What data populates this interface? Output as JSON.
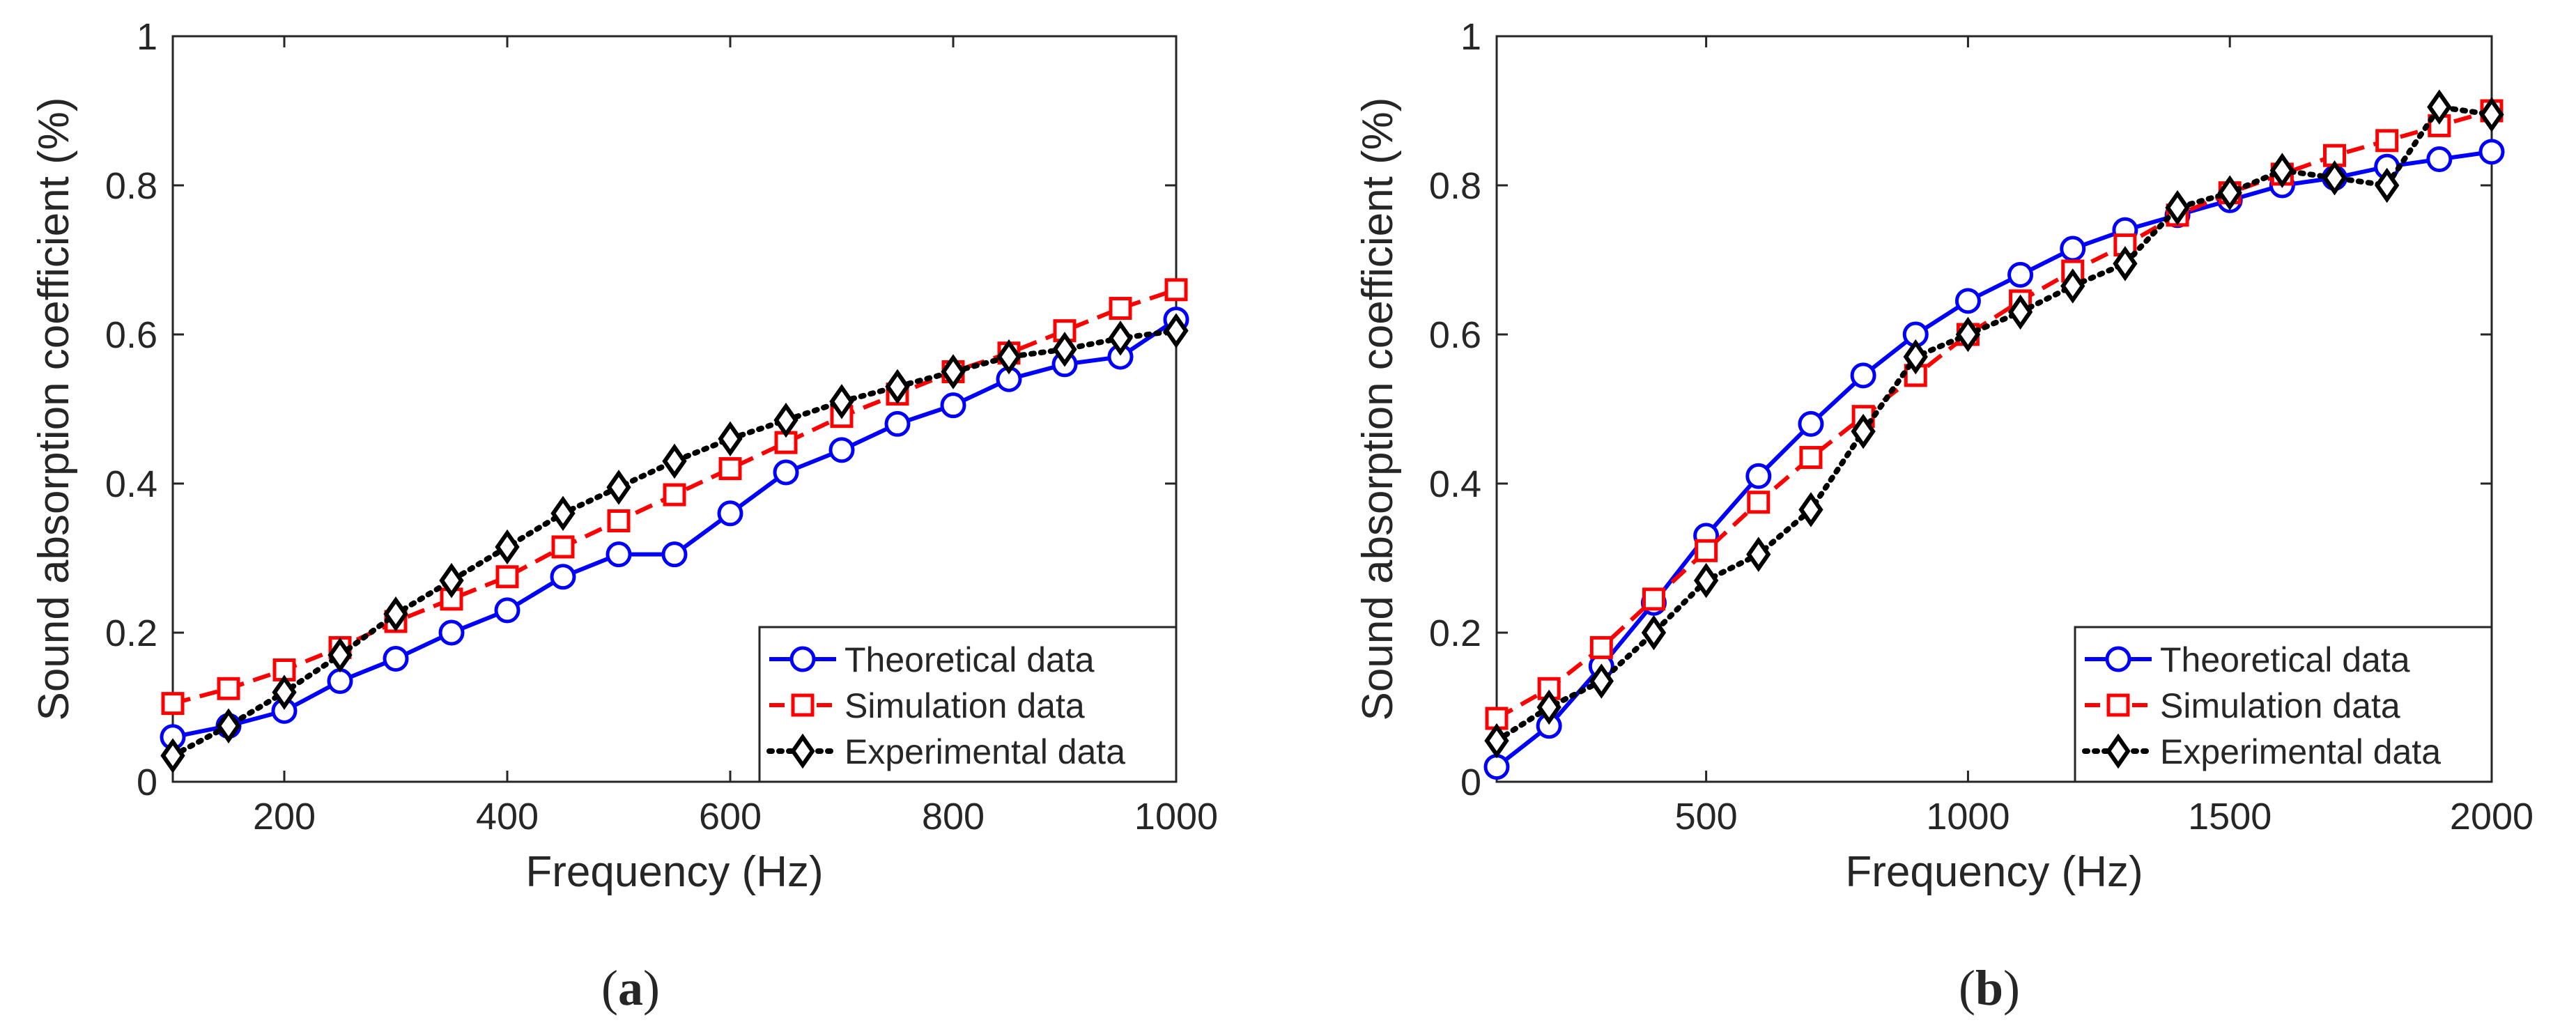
{
  "figure": {
    "panels": [
      {
        "open": "(",
        "letter": "a",
        "close": ")"
      },
      {
        "open": "(",
        "letter": "b",
        "close": ")"
      }
    ]
  },
  "series_style": {
    "Theoretical data": {
      "color": "#0000ff",
      "dash": "solid",
      "marker": "circle"
    },
    "Simulation data": {
      "color": "#ff0000",
      "dash": "dashed",
      "marker": "square"
    },
    "Experimental data": {
      "color": "#000000",
      "dash": "dotted",
      "marker": "diamond"
    }
  },
  "chart_data": [
    {
      "type": "line",
      "title": "",
      "xlabel": "Frequency (Hz)",
      "ylabel": "Sound absorption coefficient (%)",
      "xlim": [
        100,
        1000
      ],
      "ylim": [
        0,
        1
      ],
      "xticks": [
        200,
        400,
        600,
        800,
        1000
      ],
      "yticks": [
        0,
        0.2,
        0.4,
        0.6,
        0.8,
        1
      ],
      "xtick_labels": [
        "200",
        "400",
        "600",
        "800",
        "1000"
      ],
      "ytick_labels": [
        "0",
        "0.2",
        "0.4",
        "0.6",
        "0.8",
        "1"
      ],
      "legend": "bottom-right",
      "x": [
        100,
        150,
        200,
        250,
        300,
        350,
        400,
        450,
        500,
        550,
        600,
        650,
        700,
        750,
        800,
        850,
        900,
        950,
        1000
      ],
      "series": [
        {
          "name": "Theoretical data",
          "values": [
            0.06,
            0.075,
            0.095,
            0.135,
            0.165,
            0.2,
            0.23,
            0.275,
            0.305,
            0.305,
            0.36,
            0.415,
            0.445,
            0.48,
            0.505,
            0.54,
            0.56,
            0.57,
            0.62
          ]
        },
        {
          "name": "Simulation data",
          "values": [
            0.105,
            0.125,
            0.15,
            0.18,
            0.215,
            0.245,
            0.275,
            0.315,
            0.35,
            0.385,
            0.42,
            0.455,
            0.49,
            0.52,
            0.55,
            0.575,
            0.605,
            0.635,
            0.66
          ]
        },
        {
          "name": "Experimental data",
          "values": [
            0.035,
            0.075,
            0.12,
            0.17,
            0.225,
            0.27,
            0.315,
            0.36,
            0.395,
            0.43,
            0.46,
            0.485,
            0.51,
            0.53,
            0.55,
            0.57,
            0.58,
            0.595,
            0.605
          ]
        }
      ]
    },
    {
      "type": "line",
      "title": "",
      "xlabel": "Frequency (Hz)",
      "ylabel": "Sound absorption coefficient (%)",
      "xlim": [
        100,
        2000
      ],
      "ylim": [
        0,
        1
      ],
      "xticks": [
        500,
        1000,
        1500,
        2000
      ],
      "yticks": [
        0,
        0.2,
        0.4,
        0.6,
        0.8,
        1
      ],
      "xtick_labels": [
        "500",
        "1000",
        "1500",
        "2000"
      ],
      "ytick_labels": [
        "0",
        "0.2",
        "0.4",
        "0.6",
        "0.8",
        "1"
      ],
      "legend": "bottom-right",
      "x": [
        100,
        200,
        300,
        400,
        500,
        600,
        700,
        800,
        900,
        1000,
        1100,
        1200,
        1300,
        1400,
        1500,
        1600,
        1700,
        1800,
        1900,
        2000
      ],
      "series": [
        {
          "name": "Theoretical data",
          "values": [
            0.02,
            0.075,
            0.155,
            0.24,
            0.33,
            0.41,
            0.48,
            0.545,
            0.6,
            0.645,
            0.68,
            0.715,
            0.74,
            0.76,
            0.78,
            0.8,
            0.81,
            0.825,
            0.835,
            0.845
          ]
        },
        {
          "name": "Simulation data",
          "values": [
            0.085,
            0.125,
            0.18,
            0.245,
            0.31,
            0.375,
            0.435,
            0.49,
            0.545,
            0.6,
            0.645,
            0.685,
            0.72,
            0.76,
            0.79,
            0.815,
            0.84,
            0.86,
            0.88,
            0.9
          ]
        },
        {
          "name": "Experimental data",
          "values": [
            0.055,
            0.1,
            0.135,
            0.2,
            0.27,
            0.305,
            0.365,
            0.47,
            0.57,
            0.6,
            0.63,
            0.665,
            0.695,
            0.77,
            0.79,
            0.82,
            0.81,
            0.8,
            0.905,
            0.895
          ]
        }
      ]
    }
  ]
}
